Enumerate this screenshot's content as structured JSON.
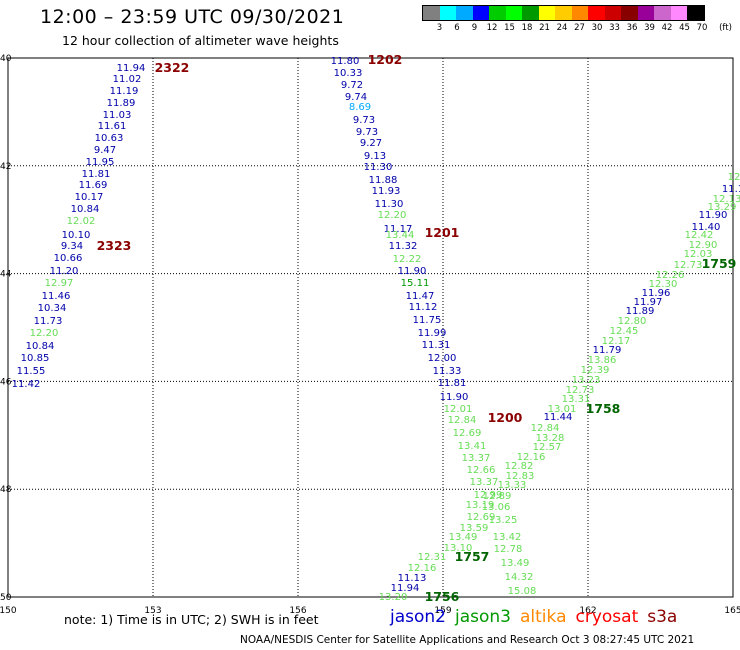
{
  "header": {
    "title": "12:00 – 23:59 UTC 09/30/2021",
    "subtitle": "12 hour collection of altimeter wave heights"
  },
  "legend": {
    "unit": "(ft)",
    "colors": [
      "#808080",
      "#00ffff",
      "#00aaff",
      "#0000ff",
      "#00cc00",
      "#00ff00",
      "#009900",
      "#ffff00",
      "#ffcc00",
      "#ff8800",
      "#ff0000",
      "#cc0000",
      "#880000",
      "#990099",
      "#cc66cc",
      "#ff88ff",
      "#000000"
    ],
    "labels": [
      "3",
      "6",
      "9",
      "12",
      "15",
      "18",
      "21",
      "24",
      "27",
      "30",
      "33",
      "36",
      "39",
      "42",
      "45",
      "70"
    ]
  },
  "map": {
    "lon_ticks": [
      "150",
      "153",
      "156",
      "159",
      "162",
      "165"
    ],
    "lat_ticks": [
      "40",
      "42",
      "44",
      "46",
      "48",
      "50"
    ],
    "lon_range": [
      150,
      165
    ],
    "lat_range": [
      40,
      50
    ]
  },
  "track_times": [
    {
      "text": "2322",
      "color": "#8b0000"
    },
    {
      "text": "2323",
      "color": "#8b0000"
    },
    {
      "text": "1202",
      "color": "#8b0000"
    },
    {
      "text": "1201",
      "color": "#8b0000"
    },
    {
      "text": "1200",
      "color": "#8b0000"
    },
    {
      "text": "1758",
      "color": "#006400"
    },
    {
      "text": "1759",
      "color": "#006400"
    },
    {
      "text": "1757",
      "color": "#006400"
    },
    {
      "text": "1756",
      "color": "#006400"
    }
  ],
  "tracks": [
    {
      "color": "#0000aa",
      "values": [
        "11.94",
        "11.02",
        "11.19",
        "11.89",
        "11.03",
        "11.61",
        "10.63",
        "9.47",
        "11.95",
        "11.81",
        "11.69",
        "10.17",
        "10.84",
        "12.02",
        "10.10",
        "9.34",
        "10.66",
        "11.20",
        "12.97",
        "11.46",
        "10.34",
        "11.73",
        "12.20",
        "10.84",
        "10.85",
        "11.55",
        "11.42"
      ],
      "colors": [
        "#0000aa",
        "#0000aa",
        "#0000aa",
        "#0000aa",
        "#0000aa",
        "#0000aa",
        "#0000aa",
        "#0000aa",
        "#0000aa",
        "#0000aa",
        "#0000aa",
        "#0000aa",
        "#0000aa",
        "#66dd55",
        "#0000aa",
        "#0000aa",
        "#0000aa",
        "#0000aa",
        "#66dd55",
        "#0000aa",
        "#0000aa",
        "#0000aa",
        "#66dd55",
        "#0000aa",
        "#0000aa",
        "#0000aa",
        "#0000aa"
      ]
    },
    {
      "color": "#0000aa",
      "values": [
        "11.80",
        "10.33",
        "9.72",
        "9.74",
        "8.69",
        "9.73",
        "9.73",
        "9.27",
        "9.13",
        "11.30",
        "11.88",
        "11.93",
        "11.30",
        "12.20",
        "11.17",
        "13.44",
        "11.32",
        "12.22",
        "11.90",
        "15.11",
        "11.47",
        "11.12",
        "11.75",
        "11.99",
        "11.31",
        "12.00",
        "11.33",
        "11.81",
        "11.90",
        "12.01",
        "12.84",
        "12.69",
        "13.41",
        "13.37",
        "12.66",
        "13.37",
        "12.99",
        "13.19",
        "12.69",
        "13.59",
        "13.49",
        "13.10",
        "12.31",
        "12.16",
        "11.13",
        "11.94",
        "13.20"
      ],
      "colors": [
        "#0000aa",
        "#0000aa",
        "#0000aa",
        "#0000aa",
        "#00aaff",
        "#0000aa",
        "#0000aa",
        "#0000aa",
        "#0000aa",
        "#0000aa",
        "#0000aa",
        "#0000aa",
        "#0000aa",
        "#66dd55",
        "#0000aa",
        "#66dd55",
        "#0000aa",
        "#66dd55",
        "#0000aa",
        "#009900",
        "#0000aa",
        "#0000aa",
        "#0000aa",
        "#0000aa",
        "#0000aa",
        "#0000aa",
        "#0000aa",
        "#0000aa",
        "#0000aa",
        "#66dd55",
        "#66dd55",
        "#66dd55",
        "#66dd55",
        "#66dd55",
        "#66dd55",
        "#66dd55",
        "#66dd55",
        "#66dd55",
        "#66dd55",
        "#66dd55",
        "#66dd55",
        "#66dd55",
        "#66dd55",
        "#66dd55",
        "#0000aa",
        "#0000aa",
        "#66dd55"
      ]
    },
    {
      "color": "#66dd55",
      "values": [
        "12",
        "11.1",
        "12.13",
        "13.29",
        "11.90",
        "11.40",
        "12.90",
        "12.42",
        "12.03",
        "12.73",
        "12.26",
        "12.30",
        "11.96",
        "11.97",
        "11.89",
        "12.80",
        "12.45",
        "12.17",
        "11.79",
        "13.86",
        "12.39",
        "13.23",
        "12.73",
        "13.31",
        "13.01",
        "11.44",
        "12.84",
        "13.28",
        "12.57",
        "12.16",
        "12.82",
        "12.83",
        "13.33",
        "12.89",
        "13.06",
        "13.25",
        "13.42",
        "12.78",
        "13.49",
        "14.32",
        "15.08"
      ],
      "colors": [
        "#66dd55",
        "#0000aa",
        "#66dd55",
        "#66dd55",
        "#0000aa",
        "#0000aa",
        "#66dd55",
        "#66dd55",
        "#66dd55",
        "#66dd55",
        "#66dd55",
        "#66dd55",
        "#0000aa",
        "#0000aa",
        "#0000aa",
        "#66dd55",
        "#66dd55",
        "#66dd55",
        "#0000aa",
        "#66dd55",
        "#66dd55",
        "#66dd55",
        "#66dd55",
        "#66dd55",
        "#66dd55",
        "#0000aa",
        "#66dd55",
        "#66dd55",
        "#66dd55",
        "#66dd55",
        "#66dd55",
        "#66dd55",
        "#66dd55",
        "#66dd55",
        "#66dd55",
        "#66dd55",
        "#66dd55",
        "#66dd55",
        "#66dd55",
        "#66dd55",
        "#66dd55"
      ]
    }
  ],
  "footer": {
    "note": "note:  1) Time is in UTC;  2) SWH is in feet",
    "missions": [
      {
        "name": "jason2",
        "color": "#0000cc"
      },
      {
        "name": "jason3",
        "color": "#009900"
      },
      {
        "name": "altika",
        "color": "#ff8800"
      },
      {
        "name": "cryosat",
        "color": "#ff0000"
      },
      {
        "name": "s3a",
        "color": "#8b0000"
      }
    ],
    "credit": "NOAA/NESDIS Center for Satellite Applications and Research    Oct  3 08:27:45 UTC 2021"
  }
}
